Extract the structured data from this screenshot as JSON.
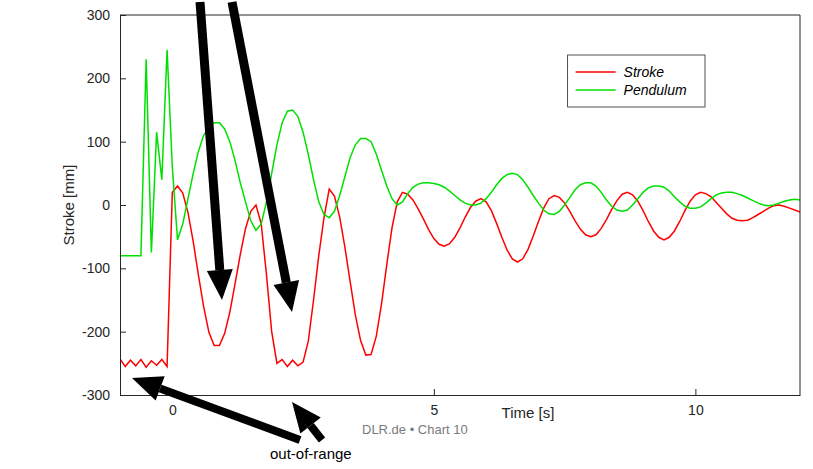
{
  "chart_data": {
    "type": "line",
    "x_label": "Time [s]",
    "y_label": "Stroke [mm]",
    "annotations": [
      "out-of-range",
      "DLR.de • Chart 10"
    ],
    "xlim": [
      -1,
      12
    ],
    "xticks": [
      0,
      5,
      10
    ],
    "ylim": [
      -300,
      300
    ],
    "yticks": [
      -300,
      -200,
      -100,
      0,
      100,
      200,
      300
    ],
    "grid": false,
    "legend": "upper right",
    "x": [
      -1,
      -0.9,
      -0.8,
      -0.7,
      -0.6,
      -0.5,
      -0.4,
      -0.3,
      -0.2,
      -0.1,
      0,
      0.1,
      0.2,
      0.3,
      0.4,
      0.5,
      0.6,
      0.7,
      0.8,
      0.9,
      1,
      1.1,
      1.2,
      1.3,
      1.4,
      1.5,
      1.6,
      1.7,
      1.8,
      1.9,
      2,
      2.1,
      2.2,
      2.3,
      2.4,
      2.5,
      2.6,
      2.7,
      2.8,
      2.9,
      3,
      3.1,
      3.2,
      3.3,
      3.4,
      3.5,
      3.6,
      3.7,
      3.8,
      3.9,
      4,
      4.1,
      4.2,
      4.3,
      4.4,
      4.5,
      4.6,
      4.7,
      4.8,
      4.9,
      5,
      5.1,
      5.2,
      5.3,
      5.4,
      5.5,
      5.6,
      5.7,
      5.8,
      5.9,
      6,
      6.1,
      6.2,
      6.3,
      6.4,
      6.5,
      6.6,
      6.7,
      6.8,
      6.9,
      7,
      7.1,
      7.2,
      7.3,
      7.4,
      7.5,
      7.6,
      7.7,
      7.8,
      7.9,
      8,
      8.1,
      8.2,
      8.3,
      8.4,
      8.5,
      8.6,
      8.7,
      8.8,
      8.9,
      9,
      9.1,
      9.2,
      9.3,
      9.4,
      9.5,
      9.6,
      9.7,
      9.8,
      9.9,
      10,
      10.1,
      10.2,
      10.3,
      10.4,
      10.5,
      10.6,
      10.7,
      10.8,
      10.9,
      11,
      11.1,
      11.2,
      11.3,
      11.4,
      11.5,
      11.6,
      11.7,
      11.8,
      11.9,
      12
    ],
    "series": [
      {
        "name": "Stroke",
        "color": "#ff0000",
        "line_style": "solid",
        "values": [
          -243,
          -255,
          -245,
          -254,
          -244,
          -256,
          -246,
          -253,
          -244,
          -255,
          20,
          30,
          19,
          -12,
          -58,
          -111,
          -161,
          -201,
          -222,
          -222,
          -203,
          -169,
          -124,
          -78,
          -37,
          -10,
          0,
          -30,
          -110,
          -200,
          -250,
          -244,
          -255,
          -245,
          -254,
          -248,
          -215,
          -150,
          -80,
          -20,
          25,
          14,
          -19,
          -67,
          -121,
          -174,
          -214,
          -237,
          -236,
          -207,
          -156,
          -94,
          -36,
          5,
          20,
          17,
          8,
          -6,
          -22,
          -39,
          -53,
          -62,
          -65,
          -61,
          -51,
          -36,
          -19,
          -4,
          6,
          10,
          5,
          -9,
          -29,
          -51,
          -71,
          -85,
          -90,
          -85,
          -70,
          -49,
          -26,
          -5,
          10,
          15,
          12,
          3,
          -10,
          -25,
          -38,
          -47,
          -50,
          -47,
          -37,
          -23,
          -7,
          7,
          17,
          20,
          16,
          6,
          -9,
          -26,
          -41,
          -51,
          -55,
          -51,
          -41,
          -26,
          -9,
          6,
          16,
          20,
          18,
          13,
          4,
          -5,
          -14,
          -21,
          -24,
          -25,
          -24,
          -20,
          -15,
          -10,
          -5,
          -1,
          0,
          -2,
          -5,
          -8,
          -11
        ]
      },
      {
        "name": "Pendulum",
        "color": "#00e000",
        "line_style": "solid",
        "values": [
          -80,
          -80,
          -80,
          -80,
          -80,
          230,
          -75,
          115,
          40,
          245,
          60,
          -55,
          -30,
          10,
          50,
          85,
          110,
          122,
          130,
          130,
          120,
          100,
          70,
          35,
          5,
          -25,
          -40,
          -30,
          5,
          50,
          95,
          130,
          148,
          150,
          140,
          115,
          80,
          40,
          5,
          -15,
          -20,
          -10,
          15,
          45,
          75,
          95,
          105,
          105,
          100,
          80,
          55,
          30,
          10,
          0,
          5,
          18,
          28,
          33,
          35,
          35,
          34,
          32,
          28,
          22,
          15,
          8,
          3,
          0,
          0,
          3,
          10,
          20,
          32,
          42,
          48,
          50,
          48,
          40,
          28,
          15,
          3,
          -8,
          -14,
          -15,
          -10,
          0,
          12,
          24,
          32,
          35,
          35,
          30,
          20,
          8,
          -2,
          -8,
          -10,
          -8,
          0,
          10,
          20,
          27,
          30,
          30,
          28,
          22,
          13,
          5,
          -2,
          -5,
          -5,
          -3,
          3,
          10,
          16,
          19,
          20,
          20,
          18,
          15,
          11,
          7,
          3,
          0,
          -1,
          0,
          3,
          6,
          8,
          9,
          8
        ]
      }
    ]
  }
}
